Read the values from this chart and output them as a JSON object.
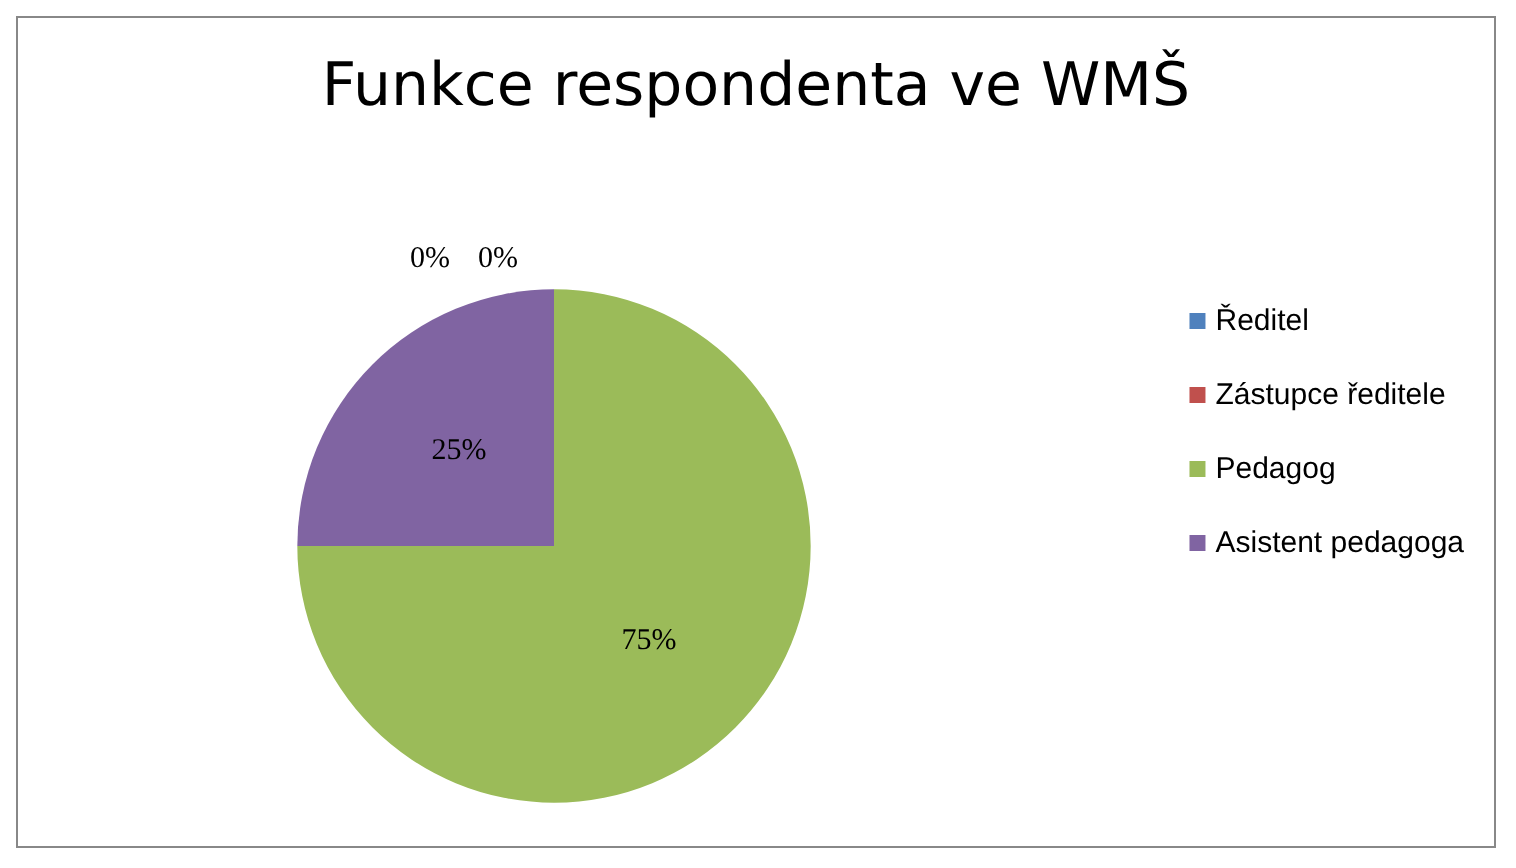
{
  "chart_data": {
    "type": "pie",
    "title": "Funkce respondenta ve WMŠ",
    "categories": [
      "Ředitel",
      "Zástupce ředitele",
      "Pedagog",
      "Asistent pedagoga"
    ],
    "values": [
      0,
      0,
      75,
      25
    ],
    "colors": [
      "#4f81bd",
      "#c0504d",
      "#9bbb59",
      "#8064a2"
    ],
    "value_labels": [
      "0%",
      "0%",
      "75%",
      "25%"
    ],
    "legend": "right"
  }
}
